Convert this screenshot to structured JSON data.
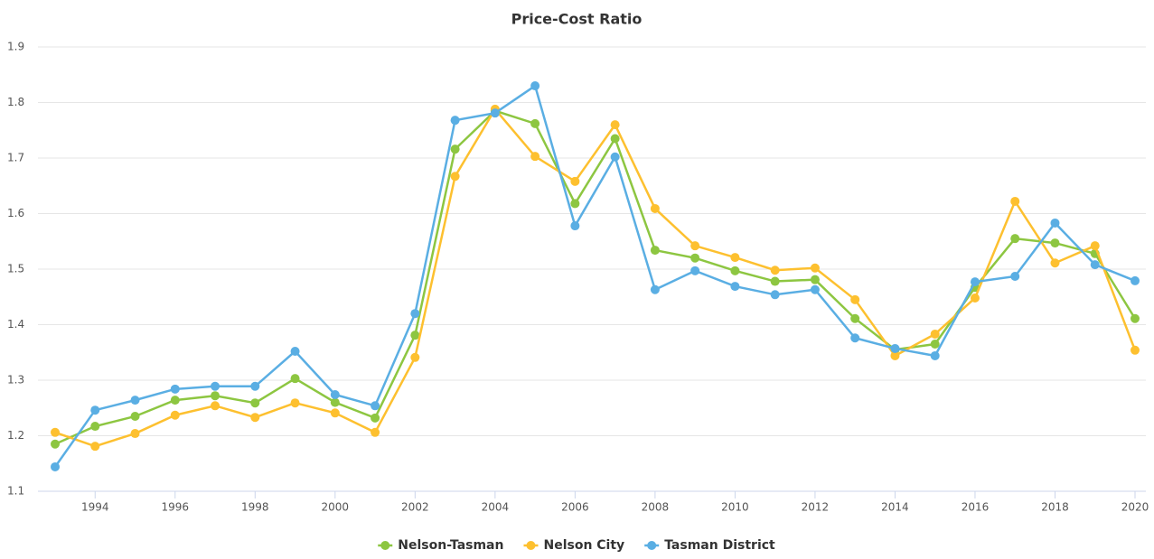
{
  "chart_data": {
    "type": "line",
    "title": "Price-Cost Ratio",
    "x": [
      1993,
      1994,
      1995,
      1996,
      1997,
      1998,
      1999,
      2000,
      2001,
      2002,
      2003,
      2004,
      2005,
      2006,
      2007,
      2008,
      2009,
      2010,
      2011,
      2012,
      2013,
      2014,
      2015,
      2016,
      2017,
      2018,
      2019,
      2020
    ],
    "xlim": [
      1993,
      2020
    ],
    "xticks": [
      1994,
      1996,
      1998,
      2000,
      2002,
      2004,
      2006,
      2008,
      2010,
      2012,
      2014,
      2016,
      2018,
      2020
    ],
    "ylim": [
      1.1,
      1.9
    ],
    "yticks": [
      1.1,
      1.2,
      1.3,
      1.4,
      1.5,
      1.6,
      1.7,
      1.8,
      1.9
    ],
    "grid": true,
    "legend": "bottom",
    "series": [
      {
        "name": "Nelson-Tasman",
        "color": "#8dc641",
        "values": [
          1.185,
          1.217,
          1.235,
          1.264,
          1.272,
          1.259,
          1.303,
          1.26,
          1.232,
          1.381,
          1.716,
          1.785,
          1.762,
          1.618,
          1.735,
          1.534,
          1.52,
          1.497,
          1.478,
          1.481,
          1.411,
          1.355,
          1.365,
          1.467,
          1.555,
          1.547,
          1.528,
          1.411
        ]
      },
      {
        "name": "Nelson City",
        "color": "#fdc02f",
        "values": [
          1.206,
          1.181,
          1.204,
          1.237,
          1.254,
          1.233,
          1.259,
          1.241,
          1.206,
          1.341,
          1.667,
          1.788,
          1.703,
          1.658,
          1.76,
          1.609,
          1.542,
          1.521,
          1.498,
          1.502,
          1.445,
          1.344,
          1.383,
          1.448,
          1.622,
          1.511,
          1.542,
          1.354
        ]
      },
      {
        "name": "Tasman District",
        "color": "#5aaee3",
        "values": [
          1.144,
          1.246,
          1.264,
          1.284,
          1.289,
          1.289,
          1.352,
          1.274,
          1.254,
          1.42,
          1.768,
          1.781,
          1.83,
          1.578,
          1.702,
          1.463,
          1.497,
          1.469,
          1.454,
          1.463,
          1.376,
          1.357,
          1.344,
          1.477,
          1.487,
          1.583,
          1.508,
          1.479
        ]
      }
    ]
  }
}
